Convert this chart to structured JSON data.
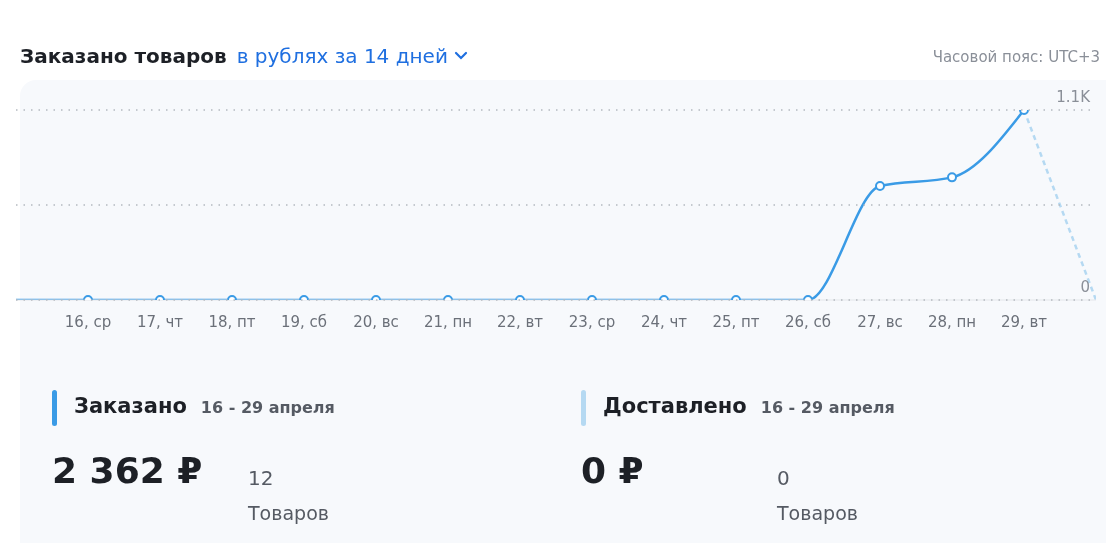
{
  "chart_data": {
    "type": "line",
    "title": "Заказано товаров",
    "subtitle": "в рублях за 14 дней",
    "categories": [
      null,
      "16, ср",
      "17, чт",
      "18, пт",
      "19, сб",
      "20, вс",
      "21, пн",
      "22, вт",
      "23, ср",
      "24, чт",
      "25, пт",
      "26, сб",
      "27, вс",
      "28, пн",
      "29, вт",
      null
    ],
    "series": [
      {
        "color": "#3a9be6",
        "values": [
          0,
          0,
          0,
          0,
          0,
          0,
          0,
          0,
          0,
          0,
          0,
          0,
          660,
          710,
          1100,
          null
        ],
        "marker": "circle",
        "line_style": "solid"
      },
      {
        "color": "#b5d9f2",
        "values": [
          null,
          null,
          null,
          null,
          null,
          null,
          null,
          null,
          null,
          null,
          null,
          null,
          null,
          null,
          1100,
          0
        ],
        "marker": "none",
        "line_style": "dashed"
      }
    ],
    "ylim": [
      0,
      1100
    ],
    "yticks": [
      0,
      {
        "value": 550,
        "label": null
      },
      {
        "value": 1100,
        "label": "1.1K"
      }
    ],
    "grid": "y",
    "annotations": [
      "Часовой пояс: UTC+3",
      "Заказано",
      "16 - 29 апреля",
      "2 362 ₽",
      "12",
      "Товаров",
      "Доставлено",
      "16 - 29 апреля",
      "0 ₽",
      "0",
      "Товаров"
    ]
  }
}
